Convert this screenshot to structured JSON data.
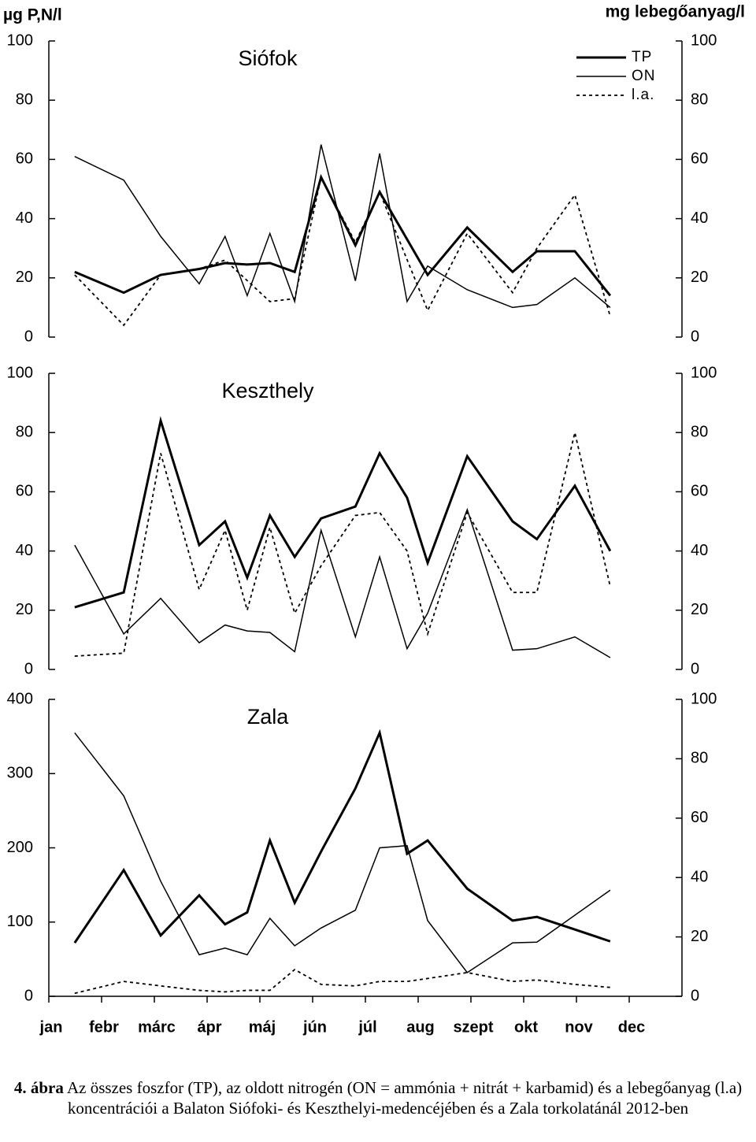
{
  "ylabel": "µg P,N/l",
  "y2label": "mg lebegőanyag/l",
  "caption_lead": "4. ábra",
  "caption": "Az összes foszfor (TP), az oldott nitrogén (ON = ammónia + nitrát + karbamid) és a lebegőanyag (l.a) koncentrációi a Balaton Siófoki- és Keszthelyi-medencéjében és a Zala torkolatánál 2012-ben",
  "chart_data": [
    {
      "type": "line",
      "title": "Siófok",
      "legend": "top-right",
      "xlim": [
        0,
        12
      ],
      "ylim": [
        0,
        100
      ],
      "yticks": [
        0,
        20,
        40,
        60,
        80,
        100
      ],
      "y2lim": [
        0,
        100
      ],
      "y2ticks": [
        0,
        20,
        40,
        60,
        80,
        100
      ],
      "series": [
        {
          "name": "TP",
          "color": "#000",
          "style": "thick",
          "x": [
            0.49,
            1.42,
            2.12,
            2.85,
            3.34,
            3.76,
            4.19,
            4.66,
            5.16,
            5.81,
            6.27,
            7.18,
            7.93,
            8.79,
            9.25,
            9.97,
            10.64
          ],
          "values": [
            22,
            15,
            21,
            23,
            25,
            24.5,
            25,
            22,
            54,
            31,
            49,
            21,
            37,
            22,
            29,
            29,
            14
          ]
        },
        {
          "name": "ON",
          "color": "#000",
          "style": "thin",
          "x": [
            0.49,
            1.42,
            2.12,
            2.85,
            3.34,
            3.76,
            4.19,
            4.66,
            5.16,
            5.81,
            6.27,
            6.79,
            7.18,
            7.93,
            8.79,
            9.25,
            9.97,
            10.64
          ],
          "values": [
            61,
            53,
            34,
            18,
            34,
            14,
            35,
            12,
            65,
            19,
            62,
            12,
            24,
            16,
            10,
            11,
            20,
            10
          ]
        },
        {
          "name": "l.a.",
          "color": "#000",
          "style": "dotted",
          "axis": "y2",
          "x": [
            0.49,
            1.42,
            2.12,
            2.85,
            3.34,
            4.19,
            4.66,
            5.16,
            5.81,
            6.27,
            7.18,
            7.93,
            8.79,
            9.25,
            9.97,
            10.64
          ],
          "values": [
            21,
            4,
            21,
            23,
            26,
            12,
            13,
            54,
            32,
            49,
            9,
            35,
            15,
            30,
            48,
            7
          ]
        }
      ]
    },
    {
      "type": "line",
      "title": "Keszthely",
      "xlim": [
        0,
        12
      ],
      "ylim": [
        0,
        100
      ],
      "yticks": [
        0,
        20,
        40,
        60,
        80,
        100
      ],
      "y2lim": [
        0,
        100
      ],
      "y2ticks": [
        0,
        20,
        40,
        60,
        80,
        100
      ],
      "series": [
        {
          "name": "TP",
          "color": "#000",
          "style": "thick",
          "x": [
            0.49,
            1.42,
            2.12,
            2.85,
            3.34,
            3.76,
            4.19,
            4.66,
            5.16,
            5.81,
            6.27,
            6.79,
            7.18,
            7.93,
            8.79,
            9.25,
            9.97,
            10.64
          ],
          "values": [
            21,
            26,
            84,
            42,
            50,
            31,
            52,
            38,
            51,
            55,
            73,
            58,
            36,
            72,
            50,
            44,
            62,
            40
          ]
        },
        {
          "name": "ON",
          "color": "#000",
          "style": "thin",
          "x": [
            0.49,
            1.42,
            2.12,
            2.85,
            3.34,
            3.76,
            4.19,
            4.66,
            5.16,
            5.81,
            6.27,
            6.79,
            7.18,
            7.93,
            8.79,
            9.25,
            9.97,
            10.64
          ],
          "values": [
            42,
            12,
            24,
            9,
            15,
            13,
            12.5,
            6,
            47,
            11,
            38,
            7,
            19,
            54,
            6.5,
            7,
            11,
            4
          ]
        },
        {
          "name": "l.a.",
          "color": "#000",
          "style": "dotted",
          "axis": "y2",
          "x": [
            0.49,
            1.42,
            2.12,
            2.85,
            3.34,
            3.76,
            4.19,
            4.66,
            5.16,
            5.81,
            6.27,
            6.79,
            7.18,
            7.93,
            8.79,
            9.25,
            9.97,
            10.64
          ],
          "values": [
            4.5,
            5.5,
            73,
            27,
            47,
            20,
            48,
            19,
            35,
            52,
            53,
            40,
            12,
            53,
            26,
            26,
            80,
            28
          ]
        }
      ]
    },
    {
      "type": "line",
      "title": "Zala",
      "xlim": [
        0,
        12
      ],
      "xticks": [
        {
          "value": 0,
          "label": "jan"
        },
        {
          "value": 1,
          "label": "febr"
        },
        {
          "value": 2,
          "label": "márc"
        },
        {
          "value": 3,
          "label": "ápr"
        },
        {
          "value": 4,
          "label": "máj"
        },
        {
          "value": 5,
          "label": "jún"
        },
        {
          "value": 6,
          "label": "júl"
        },
        {
          "value": 7,
          "label": "aug"
        },
        {
          "value": 8,
          "label": "szept"
        },
        {
          "value": 9,
          "label": "okt"
        },
        {
          "value": 10,
          "label": "nov"
        },
        {
          "value": 11,
          "label": "dec"
        }
      ],
      "ylim": [
        0,
        400
      ],
      "yticks": [
        0,
        100,
        200,
        300,
        400
      ],
      "y2lim": [
        0,
        100
      ],
      "y2ticks": [
        0,
        20,
        40,
        60,
        80,
        100
      ],
      "series": [
        {
          "name": "TP",
          "color": "#000",
          "style": "thick",
          "x": [
            0.49,
            1.42,
            2.12,
            2.85,
            3.34,
            3.76,
            4.19,
            4.66,
            5.16,
            5.81,
            6.27,
            6.79,
            7.18,
            7.93,
            8.79,
            9.25,
            9.97,
            10.64
          ],
          "values": [
            72,
            170,
            82,
            136,
            97,
            113,
            210,
            126,
            195,
            280,
            355,
            192,
            210,
            145,
            102,
            107,
            90,
            74
          ]
        },
        {
          "name": "ON",
          "color": "#000",
          "style": "thin",
          "x": [
            0.49,
            1.42,
            2.12,
            2.85,
            3.34,
            3.76,
            4.19,
            4.66,
            5.16,
            5.81,
            6.27,
            6.79,
            7.18,
            7.93,
            8.79,
            9.25,
            10.64
          ],
          "values": [
            355,
            270,
            155,
            56,
            65,
            56,
            105,
            68,
            92,
            116,
            200,
            203,
            102,
            32,
            72,
            73,
            143
          ]
        },
        {
          "name": "l.a.",
          "color": "#000",
          "style": "dotted",
          "axis": "y2",
          "x": [
            0.49,
            1.42,
            2.12,
            2.85,
            3.34,
            3.76,
            4.19,
            4.66,
            5.16,
            5.81,
            6.27,
            6.79,
            7.18,
            7.93,
            8.79,
            9.25,
            9.97,
            10.64
          ],
          "values": [
            1,
            5,
            3.5,
            2,
            1.5,
            2,
            2,
            9,
            4,
            3.5,
            5,
            5,
            6,
            8,
            5,
            5.5,
            4,
            3
          ]
        }
      ]
    }
  ]
}
